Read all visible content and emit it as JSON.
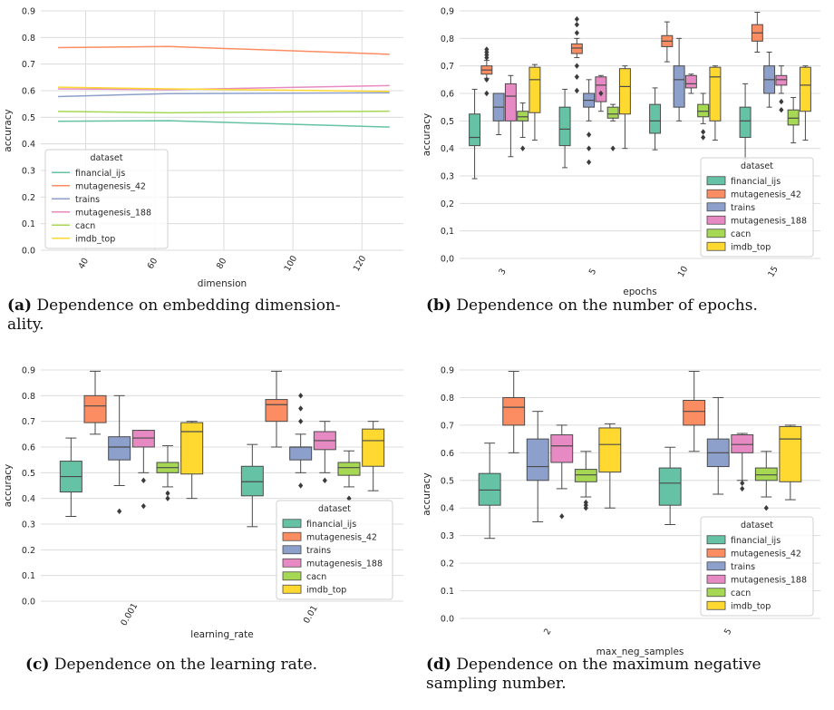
{
  "colors": {
    "financial_ijs": "#66c2a5",
    "mutagenesis_42": "#fc8d62",
    "trains": "#8da0cb",
    "mutagenesis_188": "#e78ac3",
    "cacn": "#a6d854",
    "imdb_top": "#ffd92f"
  },
  "captions": [
    {
      "label": "(a)",
      "text": "Dependence on embedding dimension-",
      "text2": "ality."
    },
    {
      "label": "(b)",
      "text": "Dependence on the number of epochs.",
      "text2": ""
    },
    {
      "label": "(c)",
      "text": "Dependence on the learning rate.",
      "text2": ""
    },
    {
      "label": "(d)",
      "text": "Dependence on the maximum negative",
      "text2": "sampling number."
    }
  ],
  "chart_data": [
    {
      "type": "line",
      "xlabel": "dimension",
      "ylabel": "accuracy",
      "xlim": [
        27,
        132
      ],
      "ylim": [
        0,
        0.9
      ],
      "x": [
        32,
        64,
        128
      ],
      "xticks": [
        "40",
        "60",
        "80",
        "100",
        "120"
      ],
      "yticks": [
        "0.0",
        "0.1",
        "0.2",
        "0.3",
        "0.4",
        "0.5",
        "0.6",
        "0.7",
        "0.8",
        "0.9"
      ],
      "legend_title": "dataset",
      "legend_position": "lower-left",
      "grid": true,
      "series": [
        {
          "name": "financial_ijs",
          "values": [
            0.485,
            0.487,
            0.463
          ]
        },
        {
          "name": "mutagenesis_42",
          "values": [
            0.762,
            0.766,
            0.737
          ]
        },
        {
          "name": "trains",
          "values": [
            0.578,
            0.589,
            0.592
          ]
        },
        {
          "name": "mutagenesis_188",
          "values": [
            0.607,
            0.604,
            0.619
          ]
        },
        {
          "name": "cacn",
          "values": [
            0.522,
            0.517,
            0.523
          ]
        },
        {
          "name": "imdb_top",
          "values": [
            0.613,
            0.607,
            0.597
          ]
        }
      ]
    },
    {
      "type": "box",
      "xlabel": "epochs",
      "ylabel": "accuracy",
      "ylim": [
        0,
        0.9
      ],
      "categories": [
        "3",
        "5",
        "10",
        "15"
      ],
      "yticks": [
        "0,0",
        "0,1",
        "0,2",
        "0,3",
        "0,4",
        "0,5",
        "0,6",
        "0,7",
        "0,8",
        "0,9"
      ],
      "legend_title": "dataset",
      "legend_position": "lower-right",
      "grid": true,
      "series": [
        {
          "name": "financial_ijs",
          "boxes": [
            {
              "min": 0.29,
              "q1": 0.41,
              "median": 0.44,
              "q3": 0.525,
              "max": 0.615,
              "outliers": []
            },
            {
              "min": 0.33,
              "q1": 0.41,
              "median": 0.47,
              "q3": 0.55,
              "max": 0.615,
              "outliers": []
            },
            {
              "min": 0.395,
              "q1": 0.455,
              "median": 0.5,
              "q3": 0.56,
              "max": 0.62,
              "outliers": []
            },
            {
              "min": 0.36,
              "q1": 0.44,
              "median": 0.5,
              "q3": 0.55,
              "max": 0.635,
              "outliers": []
            }
          ]
        },
        {
          "name": "mutagenesis_42",
          "boxes": [
            {
              "min": 0.655,
              "q1": 0.67,
              "median": 0.685,
              "q3": 0.7,
              "max": 0.72,
              "outliers": [
                0.6,
                0.65,
                0.73,
                0.74,
                0.75,
                0.76
              ]
            },
            {
              "min": 0.73,
              "q1": 0.745,
              "median": 0.765,
              "q3": 0.78,
              "max": 0.8,
              "outliers": [
                0.61,
                0.66,
                0.7,
                0.82,
                0.85,
                0.87
              ]
            },
            {
              "min": 0.715,
              "q1": 0.77,
              "median": 0.79,
              "q3": 0.81,
              "max": 0.86,
              "outliers": []
            },
            {
              "min": 0.75,
              "q1": 0.79,
              "median": 0.82,
              "q3": 0.85,
              "max": 0.895,
              "outliers": []
            }
          ]
        },
        {
          "name": "trains",
          "boxes": [
            {
              "min": 0.45,
              "q1": 0.5,
              "median": 0.55,
              "q3": 0.6,
              "max": 0.6,
              "outliers": []
            },
            {
              "min": 0.5,
              "q1": 0.55,
              "median": 0.575,
              "q3": 0.6,
              "max": 0.65,
              "outliers": [
                0.35,
                0.4,
                0.45
              ]
            },
            {
              "min": 0.5,
              "q1": 0.55,
              "median": 0.65,
              "q3": 0.7,
              "max": 0.8,
              "outliers": []
            },
            {
              "min": 0.55,
              "q1": 0.6,
              "median": 0.65,
              "q3": 0.7,
              "max": 0.75,
              "outliers": []
            }
          ]
        },
        {
          "name": "mutagenesis_188",
          "boxes": [
            {
              "min": 0.37,
              "q1": 0.5,
              "median": 0.59,
              "q3": 0.635,
              "max": 0.665,
              "outliers": []
            },
            {
              "min": 0.535,
              "q1": 0.57,
              "median": 0.63,
              "q3": 0.66,
              "max": 0.665,
              "outliers": [
                0.6
              ]
            },
            {
              "min": 0.6,
              "q1": 0.62,
              "median": 0.635,
              "q3": 0.665,
              "max": 0.67,
              "outliers": []
            },
            {
              "min": 0.6,
              "q1": 0.63,
              "median": 0.65,
              "q3": 0.665,
              "max": 0.7,
              "outliers": [
                0.54,
                0.57
              ]
            }
          ]
        },
        {
          "name": "cacn",
          "boxes": [
            {
              "min": 0.44,
              "q1": 0.5,
              "median": 0.515,
              "q3": 0.535,
              "max": 0.565,
              "outliers": [
                0.4
              ]
            },
            {
              "min": 0.5,
              "q1": 0.51,
              "median": 0.525,
              "q3": 0.55,
              "max": 0.56,
              "outliers": [
                0.4
              ]
            },
            {
              "min": 0.49,
              "q1": 0.515,
              "median": 0.535,
              "q3": 0.56,
              "max": 0.6,
              "outliers": [
                0.44,
                0.46
              ]
            },
            {
              "min": 0.42,
              "q1": 0.485,
              "median": 0.51,
              "q3": 0.54,
              "max": 0.585,
              "outliers": []
            }
          ]
        },
        {
          "name": "imdb_top",
          "boxes": [
            {
              "min": 0.43,
              "q1": 0.53,
              "median": 0.65,
              "q3": 0.695,
              "max": 0.705,
              "outliers": []
            },
            {
              "min": 0.4,
              "q1": 0.525,
              "median": 0.625,
              "q3": 0.69,
              "max": 0.7,
              "outliers": []
            },
            {
              "min": 0.43,
              "q1": 0.5,
              "median": 0.66,
              "q3": 0.695,
              "max": 0.7,
              "outliers": []
            },
            {
              "min": 0.43,
              "q1": 0.535,
              "median": 0.63,
              "q3": 0.695,
              "max": 0.7,
              "outliers": []
            }
          ]
        }
      ]
    },
    {
      "type": "box",
      "xlabel": "learning_rate",
      "ylabel": "accuracy",
      "ylim": [
        0,
        0.9
      ],
      "categories": [
        "0.001",
        "0.01"
      ],
      "yticks": [
        "0.0",
        "0.1",
        "0.2",
        "0.3",
        "0.4",
        "0.5",
        "0.6",
        "0.7",
        "0.8",
        "0.9"
      ],
      "legend_title": "dataset",
      "legend_position": "lower-right",
      "grid": true,
      "series": [
        {
          "name": "financial_ijs",
          "boxes": [
            {
              "min": 0.33,
              "q1": 0.425,
              "median": 0.485,
              "q3": 0.545,
              "max": 0.635,
              "outliers": []
            },
            {
              "min": 0.29,
              "q1": 0.41,
              "median": 0.465,
              "q3": 0.525,
              "max": 0.61,
              "outliers": []
            }
          ]
        },
        {
          "name": "mutagenesis_42",
          "boxes": [
            {
              "min": 0.65,
              "q1": 0.695,
              "median": 0.76,
              "q3": 0.8,
              "max": 0.895,
              "outliers": []
            },
            {
              "min": 0.6,
              "q1": 0.7,
              "median": 0.765,
              "q3": 0.785,
              "max": 0.895,
              "outliers": []
            }
          ]
        },
        {
          "name": "trains",
          "boxes": [
            {
              "min": 0.45,
              "q1": 0.55,
              "median": 0.6,
              "q3": 0.64,
              "max": 0.8,
              "outliers": [
                0.35
              ]
            },
            {
              "min": 0.5,
              "q1": 0.55,
              "median": 0.6,
              "q3": 0.6,
              "max": 0.65,
              "outliers": [
                0.45,
                0.7,
                0.75,
                0.8
              ]
            }
          ]
        },
        {
          "name": "mutagenesis_188",
          "boxes": [
            {
              "min": 0.5,
              "q1": 0.6,
              "median": 0.635,
              "q3": 0.665,
              "max": 0.665,
              "outliers": [
                0.37,
                0.47
              ]
            },
            {
              "min": 0.5,
              "q1": 0.59,
              "median": 0.625,
              "q3": 0.66,
              "max": 0.7,
              "outliers": [
                0.47
              ]
            }
          ]
        },
        {
          "name": "cacn",
          "boxes": [
            {
              "min": 0.445,
              "q1": 0.5,
              "median": 0.52,
              "q3": 0.54,
              "max": 0.605,
              "outliers": [
                0.4,
                0.42
              ]
            },
            {
              "min": 0.445,
              "q1": 0.49,
              "median": 0.52,
              "q3": 0.54,
              "max": 0.585,
              "outliers": [
                0.4
              ]
            }
          ]
        },
        {
          "name": "imdb_top",
          "boxes": [
            {
              "min": 0.4,
              "q1": 0.495,
              "median": 0.66,
              "q3": 0.695,
              "max": 0.7,
              "outliers": []
            },
            {
              "min": 0.43,
              "q1": 0.525,
              "median": 0.625,
              "q3": 0.67,
              "max": 0.7,
              "outliers": []
            }
          ]
        }
      ]
    },
    {
      "type": "box",
      "xlabel": "max_neg_samples",
      "ylabel": "accuracy",
      "ylim": [
        0,
        0.9
      ],
      "categories": [
        "2",
        "5"
      ],
      "yticks": [
        "0.0",
        "0.1",
        "0.2",
        "0.3",
        "0.4",
        "0.5",
        "0.6",
        "0.7",
        "0.8",
        "0.9"
      ],
      "legend_title": "dataset",
      "legend_position": "lower-right",
      "grid": true,
      "series": [
        {
          "name": "financial_ijs",
          "boxes": [
            {
              "min": 0.29,
              "q1": 0.41,
              "median": 0.465,
              "q3": 0.525,
              "max": 0.635,
              "outliers": []
            },
            {
              "min": 0.34,
              "q1": 0.41,
              "median": 0.49,
              "q3": 0.545,
              "max": 0.62,
              "outliers": []
            }
          ]
        },
        {
          "name": "mutagenesis_42",
          "boxes": [
            {
              "min": 0.6,
              "q1": 0.7,
              "median": 0.765,
              "q3": 0.8,
              "max": 0.895,
              "outliers": []
            },
            {
              "min": 0.605,
              "q1": 0.7,
              "median": 0.75,
              "q3": 0.79,
              "max": 0.895,
              "outliers": []
            }
          ]
        },
        {
          "name": "trains",
          "boxes": [
            {
              "min": 0.35,
              "q1": 0.5,
              "median": 0.55,
              "q3": 0.65,
              "max": 0.75,
              "outliers": []
            },
            {
              "min": 0.45,
              "q1": 0.55,
              "median": 0.6,
              "q3": 0.65,
              "max": 0.8,
              "outliers": []
            }
          ]
        },
        {
          "name": "mutagenesis_188",
          "boxes": [
            {
              "min": 0.47,
              "q1": 0.565,
              "median": 0.625,
              "q3": 0.665,
              "max": 0.7,
              "outliers": [
                0.37
              ]
            },
            {
              "min": 0.5,
              "q1": 0.6,
              "median": 0.63,
              "q3": 0.665,
              "max": 0.67,
              "outliers": [
                0.47,
                0.49
              ]
            }
          ]
        },
        {
          "name": "cacn",
          "boxes": [
            {
              "min": 0.44,
              "q1": 0.495,
              "median": 0.52,
              "q3": 0.54,
              "max": 0.605,
              "outliers": [
                0.4,
                0.41,
                0.42
              ]
            },
            {
              "min": 0.44,
              "q1": 0.5,
              "median": 0.52,
              "q3": 0.545,
              "max": 0.605,
              "outliers": [
                0.4
              ]
            }
          ]
        },
        {
          "name": "imdb_top",
          "boxes": [
            {
              "min": 0.4,
              "q1": 0.53,
              "median": 0.63,
              "q3": 0.69,
              "max": 0.705,
              "outliers": []
            },
            {
              "min": 0.43,
              "q1": 0.495,
              "median": 0.65,
              "q3": 0.695,
              "max": 0.7,
              "outliers": []
            }
          ]
        }
      ]
    }
  ]
}
